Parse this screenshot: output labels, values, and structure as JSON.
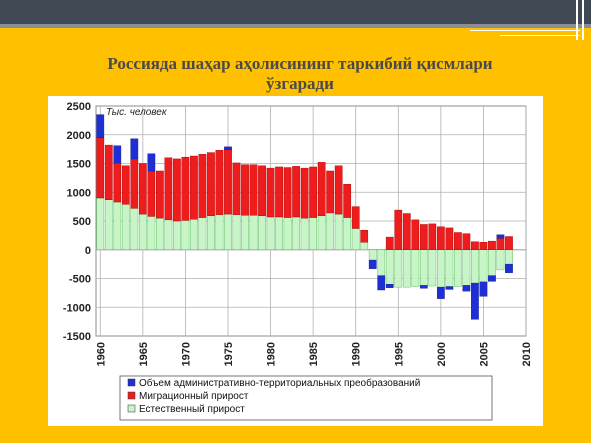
{
  "slide": {
    "title_line1": "Россияда шаҳар аҳолисининг таркибий қисмлари",
    "title_line2": "ўзгаради"
  },
  "colors": {
    "background": "#ffc000",
    "topbar": "#404854",
    "admin": "#1f2fd6",
    "migration": "#ee1c1c",
    "natural": "#c8f5c8"
  },
  "chart_data": {
    "type": "bar",
    "stacked": true,
    "unit_label": "Тыс. человек",
    "ylim": [
      -1500,
      2500
    ],
    "yticks": [
      -1500,
      -1000,
      -500,
      0,
      500,
      1000,
      1500,
      2000,
      2500
    ],
    "xlim": [
      1959.5,
      2010
    ],
    "xticks": [
      1960,
      1965,
      1970,
      1975,
      1980,
      1985,
      1990,
      1995,
      2000,
      2005,
      2010
    ],
    "grid": true,
    "legend_position": "bottom",
    "x": [
      1960,
      1961,
      1962,
      1963,
      1964,
      1965,
      1966,
      1967,
      1968,
      1969,
      1970,
      1971,
      1972,
      1973,
      1974,
      1975,
      1976,
      1977,
      1978,
      1979,
      1980,
      1981,
      1982,
      1983,
      1984,
      1985,
      1986,
      1987,
      1988,
      1989,
      1990,
      1991,
      1992,
      1993,
      1994,
      1995,
      1996,
      1997,
      1998,
      1999,
      2000,
      2001,
      2002,
      2003,
      2004,
      2005,
      2006,
      2007,
      2008
    ],
    "series": [
      {
        "name": "Естественный прирост",
        "color": "#c8f5c8",
        "border": "#4caf50",
        "values": [
          900,
          870,
          830,
          790,
          720,
          620,
          580,
          550,
          520,
          500,
          510,
          530,
          560,
          590,
          610,
          620,
          610,
          600,
          600,
          590,
          570,
          570,
          560,
          570,
          550,
          560,
          590,
          640,
          620,
          560,
          370,
          130,
          -180,
          -450,
          -600,
          -650,
          -650,
          -640,
          -620,
          -630,
          -650,
          -640,
          -640,
          -620,
          -580,
          -560,
          -450,
          -350,
          -250
        ]
      },
      {
        "name": "Миграционный прирост",
        "color": "#ee1c1c",
        "border": "#a00000",
        "values": [
          1050,
          950,
          680,
          670,
          860,
          880,
          790,
          820,
          1080,
          1080,
          1100,
          1100,
          1100,
          1100,
          1120,
          1120,
          900,
          880,
          880,
          870,
          850,
          870,
          870,
          880,
          870,
          880,
          930,
          730,
          840,
          580,
          380,
          210,
          0,
          0,
          220,
          690,
          630,
          520,
          440,
          450,
          400,
          380,
          300,
          280,
          140,
          130,
          150,
          200,
          230
        ]
      },
      {
        "name": "Объем административно-территориальных преобразований",
        "color": "#1f2fd6",
        "border": "#10188a",
        "values": [
          400,
          0,
          300,
          0,
          350,
          0,
          300,
          0,
          0,
          0,
          0,
          0,
          0,
          0,
          0,
          50,
          0,
          0,
          0,
          0,
          0,
          0,
          0,
          0,
          0,
          0,
          0,
          0,
          0,
          0,
          0,
          0,
          -150,
          -250,
          -60,
          0,
          0,
          0,
          -50,
          0,
          -200,
          -50,
          0,
          -100,
          -630,
          -250,
          -100,
          60,
          -150
        ]
      }
    ],
    "legend": [
      {
        "label": "Объем административно-территориальных преобразований",
        "color": "#1f2fd6"
      },
      {
        "label": "Миграционный прирост",
        "color": "#ee1c1c"
      },
      {
        "label": "Естественный прирост",
        "color": "#c8f5c8"
      }
    ]
  }
}
